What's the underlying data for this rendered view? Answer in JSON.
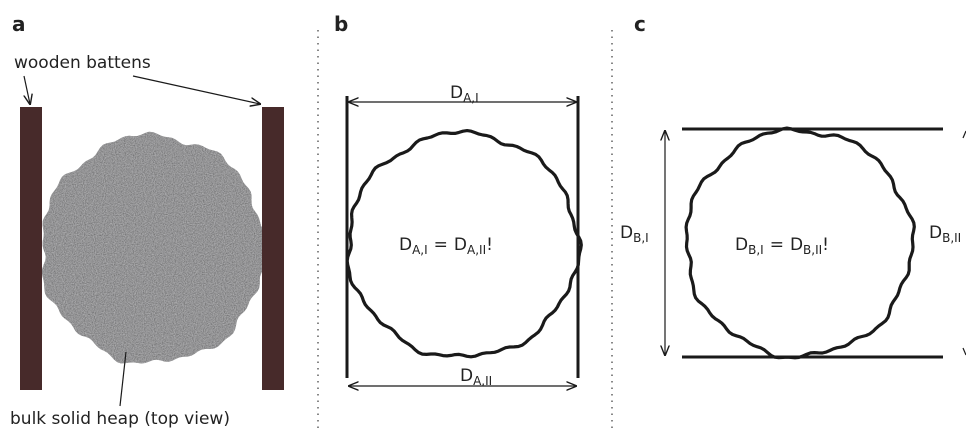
{
  "panels": {
    "a": {
      "label": "a",
      "battens_label": "wooden battens",
      "heap_label": "bulk solid heap (top view)"
    },
    "b": {
      "label": "b",
      "top": {
        "symbol": "D",
        "subscript": "A,I"
      },
      "bottom": {
        "symbol": "D",
        "subscript": "A,II"
      },
      "equation": {
        "left": {
          "symbol": "D",
          "subscript": "A,I"
        },
        "operator": "=",
        "right": {
          "symbol": "D",
          "subscript": "A,II"
        },
        "suffix": "!"
      }
    },
    "c": {
      "label": "c",
      "left": {
        "symbol": "D",
        "subscript": "B,I"
      },
      "right": {
        "symbol": "D",
        "subscript": "B,II"
      },
      "equation": {
        "left": {
          "symbol": "D",
          "subscript": "B,I"
        },
        "operator": "=",
        "right": {
          "symbol": "D",
          "subscript": "B,II"
        },
        "suffix": "!"
      }
    }
  }
}
